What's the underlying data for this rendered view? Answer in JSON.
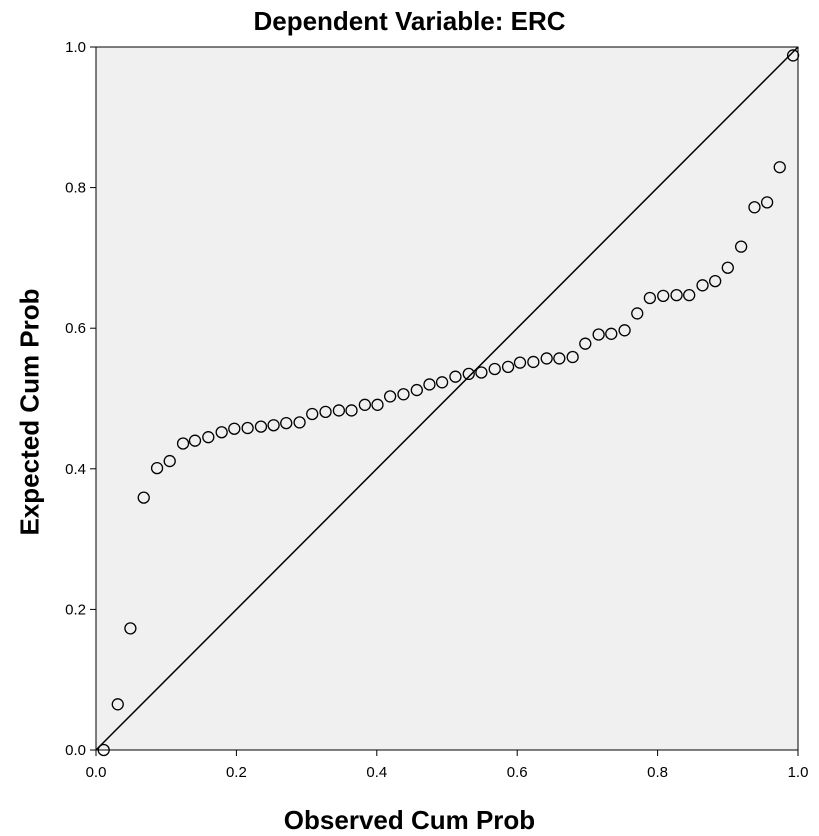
{
  "chart_data": {
    "type": "scatter",
    "title": "Dependent Variable: ERC",
    "xlabel": "Observed Cum Prob",
    "ylabel": "Expected Cum Prob",
    "xlim": [
      0,
      1
    ],
    "ylim": [
      0,
      1
    ],
    "x_ticks": [
      "0.0",
      "0.2",
      "0.4",
      "0.6",
      "0.8",
      "1.0"
    ],
    "y_ticks": [
      "0.0",
      "0.2",
      "0.4",
      "0.6",
      "0.8",
      "1.0"
    ],
    "grid": false,
    "reference_line": [
      [
        0,
        0
      ],
      [
        1,
        1
      ]
    ],
    "colors": {
      "plot_background": "#f0f0f0",
      "marker_stroke": "#000000",
      "line": "#000000"
    },
    "series": [
      {
        "x": [
          0.011,
          0.031,
          0.049,
          0.068,
          0.087,
          0.105,
          0.124,
          0.141,
          0.16,
          0.179,
          0.197,
          0.216,
          0.235,
          0.253,
          0.271,
          0.29,
          0.308,
          0.327,
          0.346,
          0.364,
          0.383,
          0.401,
          0.419,
          0.438,
          0.457,
          0.475,
          0.493,
          0.512,
          0.531,
          0.549,
          0.568,
          0.587,
          0.604,
          0.623,
          0.642,
          0.66,
          0.679,
          0.697,
          0.716,
          0.734,
          0.753,
          0.771,
          0.789,
          0.808,
          0.827,
          0.845,
          0.864,
          0.882,
          0.9,
          0.919,
          0.938,
          0.956,
          0.974,
          0.993
        ],
        "y": [
          0.0,
          0.065,
          0.173,
          0.359,
          0.401,
          0.411,
          0.436,
          0.44,
          0.445,
          0.452,
          0.457,
          0.458,
          0.46,
          0.462,
          0.465,
          0.466,
          0.478,
          0.481,
          0.483,
          0.483,
          0.491,
          0.491,
          0.503,
          0.506,
          0.512,
          0.52,
          0.523,
          0.531,
          0.535,
          0.537,
          0.542,
          0.545,
          0.551,
          0.552,
          0.557,
          0.557,
          0.559,
          0.578,
          0.591,
          0.592,
          0.597,
          0.621,
          0.643,
          0.646,
          0.647,
          0.647,
          0.661,
          0.667,
          0.686,
          0.716,
          0.772,
          0.779,
          0.829,
          0.988
        ]
      }
    ]
  }
}
